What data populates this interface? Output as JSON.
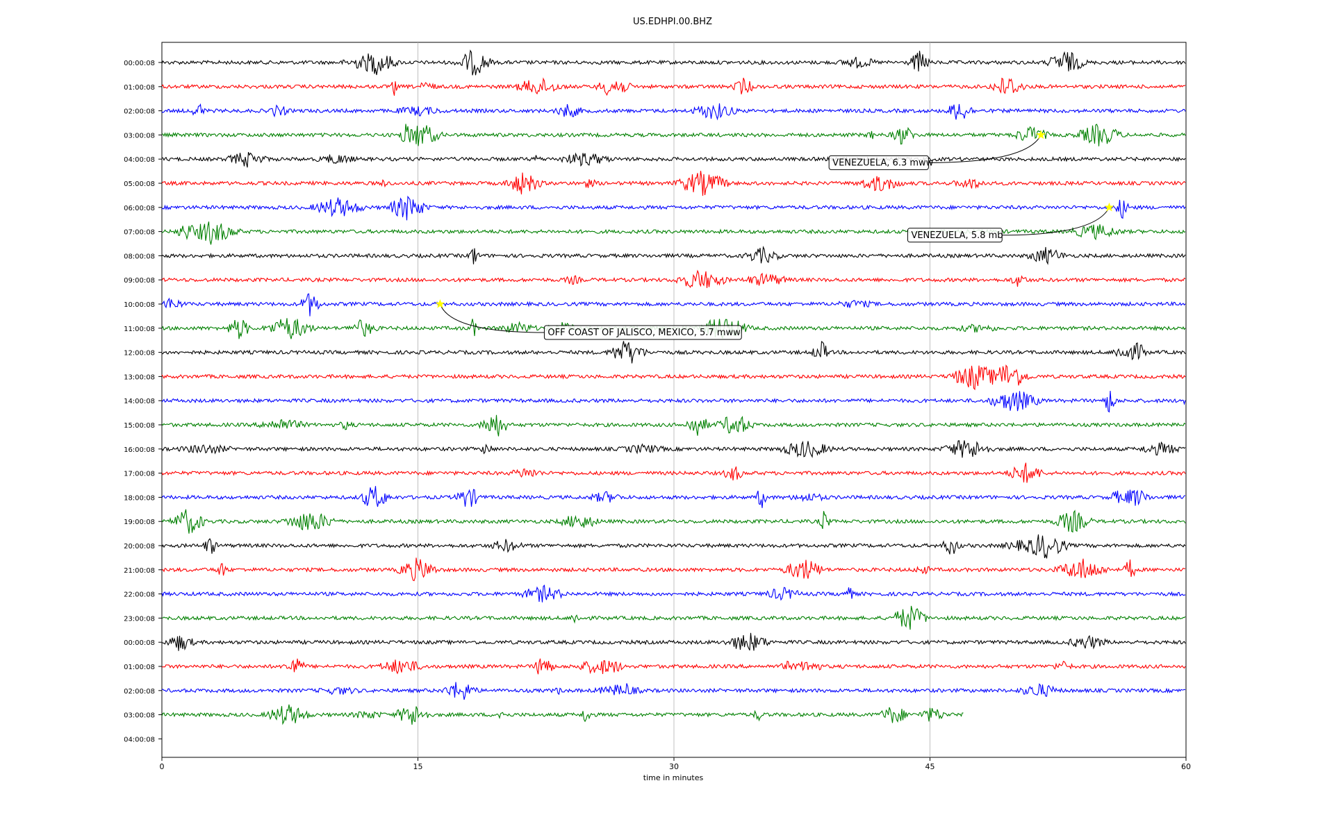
{
  "chart_data": {
    "type": "line",
    "title": "US.EDHPI.00.BHZ",
    "xlabel": "time in minutes",
    "xlim": [
      0,
      60
    ],
    "xticks": [
      0,
      15,
      30,
      45,
      60
    ],
    "grid": "vertical",
    "row_labels": [
      "00:00:08",
      "01:00:08",
      "02:00:08",
      "03:00:08",
      "04:00:08",
      "05:00:08",
      "06:00:08",
      "07:00:08",
      "08:00:08",
      "09:00:08",
      "10:00:08",
      "11:00:08",
      "12:00:08",
      "13:00:08",
      "14:00:08",
      "15:00:08",
      "16:00:08",
      "17:00:08",
      "18:00:08",
      "19:00:08",
      "20:00:08",
      "21:00:08",
      "22:00:08",
      "23:00:08",
      "00:00:08",
      "01:00:08",
      "02:00:08",
      "03:00:08",
      "04:00:08"
    ],
    "trace_colors": [
      "#000000",
      "#ff0000",
      "#0000ff",
      "#008000"
    ],
    "last_trace": {
      "row": 27,
      "end_minute": 47
    },
    "events": [
      {
        "label": "VENEZUELA, 6.3 mww",
        "row": 3,
        "minute": 51.5,
        "marker_color": "#ffff00"
      },
      {
        "label": "VENEZUELA, 5.8 mb",
        "row": 6,
        "minute": 55.5,
        "marker_color": "#ffff00"
      },
      {
        "label": "OFF COAST OF JALISCO, MEXICO, 5.7 mww",
        "row": 10,
        "minute": 16.3,
        "marker_color": "#ffff00"
      }
    ]
  }
}
